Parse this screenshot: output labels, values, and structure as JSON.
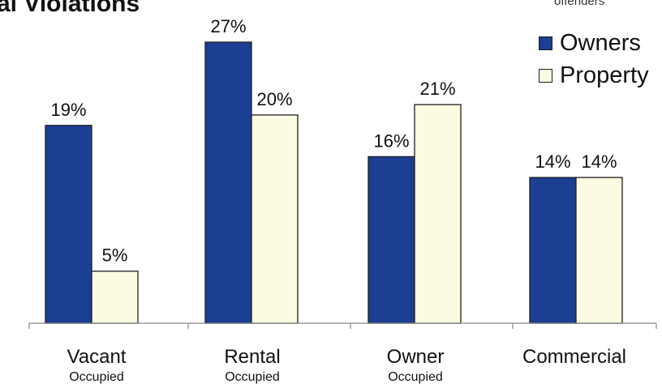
{
  "chart_data": {
    "type": "bar",
    "title": "al Violations",
    "categories": [
      {
        "main": "Vacant",
        "sub": "Occupied"
      },
      {
        "main": "Rental",
        "sub": "Occupied"
      },
      {
        "main": "Owner",
        "sub": "Occupied"
      },
      {
        "main": "Commercial",
        "sub": ""
      }
    ],
    "series": [
      {
        "name": "Owners",
        "values": [
          19,
          27,
          16,
          14
        ],
        "labels": [
          "19%",
          "27%",
          "16%",
          "14%"
        ]
      },
      {
        "name": "Property",
        "values": [
          5,
          20,
          21,
          14
        ],
        "labels": [
          "5%",
          "20%",
          "21%",
          "14%"
        ]
      }
    ],
    "legend_header": "offenders",
    "ylim": [
      0,
      27
    ],
    "grid": false,
    "legend_position": "top-right",
    "colors": {
      "owners": "#1c3f94",
      "property": "#fbfbe1"
    }
  }
}
